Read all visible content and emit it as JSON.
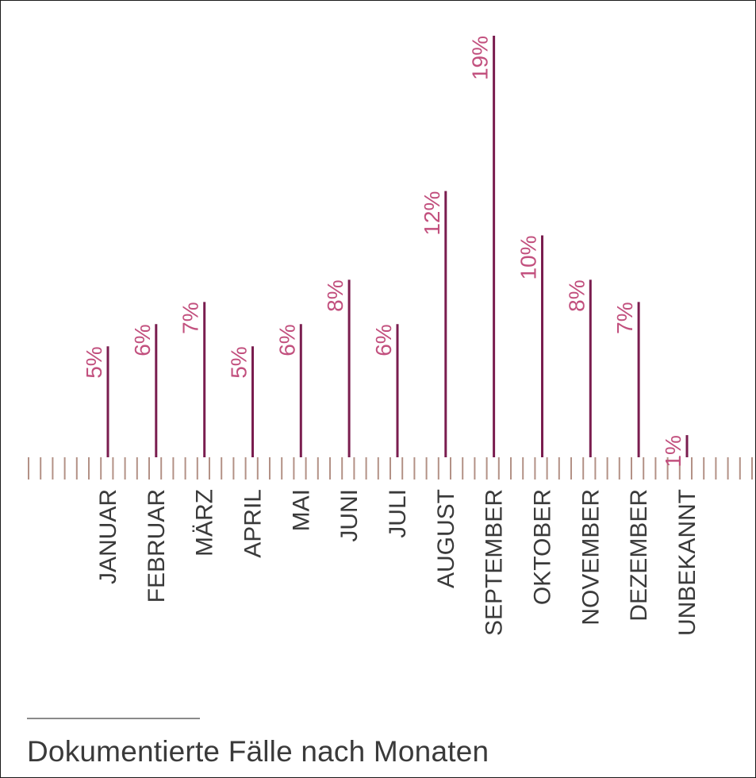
{
  "caption": "Dokumentierte Fälle nach Monaten",
  "colors": {
    "bar": "#7a1d4f",
    "value_label": "#c2507e",
    "tick": "#b39186",
    "category_label": "#3a3a3a",
    "caption_rule": "#8a8a8a"
  },
  "chart_data": {
    "type": "bar",
    "orientation": "vertical",
    "bar_style": "thin-line",
    "categories": [
      "JANUAR",
      "FEBRUAR",
      "MÄRZ",
      "APRIL",
      "MAI",
      "JUNI",
      "JULI",
      "AUGUST",
      "SEPTEMBER",
      "OKTOBER",
      "NOVEMBER",
      "DEZEMBER",
      "UNBEKANNT"
    ],
    "values": [
      5,
      6,
      7,
      5,
      6,
      8,
      6,
      12,
      19,
      10,
      8,
      7,
      1
    ],
    "value_labels": [
      "5%",
      "6%",
      "7%",
      "5%",
      "6%",
      "8%",
      "6%",
      "12%",
      "19%",
      "10%",
      "8%",
      "7%",
      "1%"
    ],
    "unit": "%",
    "ylim": [
      0,
      19
    ],
    "grid": false,
    "legend": "none",
    "title": "",
    "xlabel": "",
    "ylabel": ""
  }
}
